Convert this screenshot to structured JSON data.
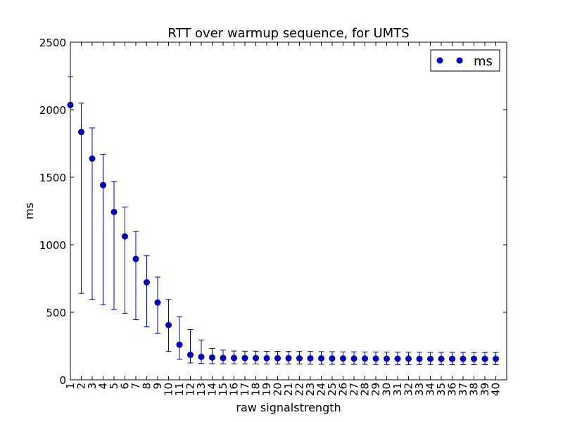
{
  "chart_data": {
    "type": "scatter",
    "title": "RTT over warmup sequence, for UMTS",
    "xlabel": "raw signalstrength",
    "ylabel": "ms",
    "ylim": [
      0,
      2500
    ],
    "yticks": [
      0,
      500,
      1000,
      1500,
      2000,
      2500
    ],
    "xlim": [
      1,
      41
    ],
    "categories": [
      "1",
      "2",
      "3",
      "4",
      "5",
      "6",
      "7",
      "8",
      "9",
      "10",
      "11",
      "12",
      "13",
      "14",
      "15",
      "16",
      "17",
      "18",
      "19",
      "20",
      "21",
      "22",
      "23",
      "24",
      "25",
      "26",
      "27",
      "28",
      "29",
      "30",
      "31",
      "32",
      "33",
      "34",
      "35",
      "36",
      "37",
      "38",
      "39",
      "40"
    ],
    "grid": false,
    "legend_position": "top-right",
    "marker_color": "#0000bf",
    "series": [
      {
        "name": "ms",
        "x": [
          1,
          2,
          3,
          4,
          5,
          6,
          7,
          8,
          9,
          10,
          11,
          12,
          13,
          14,
          15,
          16,
          17,
          18,
          19,
          20,
          21,
          22,
          23,
          24,
          25,
          26,
          27,
          28,
          29,
          30,
          31,
          32,
          33,
          34,
          35,
          36,
          37,
          38,
          39,
          40
        ],
        "values": [
          2035,
          1835,
          1638,
          1442,
          1243,
          1062,
          895,
          722,
          572,
          405,
          260,
          185,
          170,
          165,
          162,
          162,
          161,
          161,
          160,
          160,
          160,
          159,
          159,
          159,
          158,
          158,
          157,
          157,
          157,
          156,
          156,
          156,
          155,
          155,
          155,
          155,
          155,
          155,
          155,
          155
        ],
        "err_low": [
          null,
          640,
          595,
          555,
          520,
          493,
          445,
          392,
          343,
          210,
          152,
          125,
          122,
          120,
          118,
          118,
          117,
          117,
          116,
          116,
          116,
          116,
          115,
          115,
          115,
          114,
          114,
          114,
          113,
          113,
          113,
          113,
          113,
          113,
          112,
          112,
          112,
          112,
          112,
          112
        ],
        "err_high": [
          2245,
          2050,
          1865,
          1670,
          1468,
          1280,
          1098,
          918,
          760,
          595,
          468,
          372,
          295,
          232,
          220,
          213,
          212,
          212,
          211,
          211,
          210,
          210,
          210,
          209,
          208,
          207,
          207,
          206,
          206,
          205,
          204,
          204,
          204,
          203,
          203,
          203,
          203,
          202,
          202,
          202
        ]
      }
    ]
  }
}
